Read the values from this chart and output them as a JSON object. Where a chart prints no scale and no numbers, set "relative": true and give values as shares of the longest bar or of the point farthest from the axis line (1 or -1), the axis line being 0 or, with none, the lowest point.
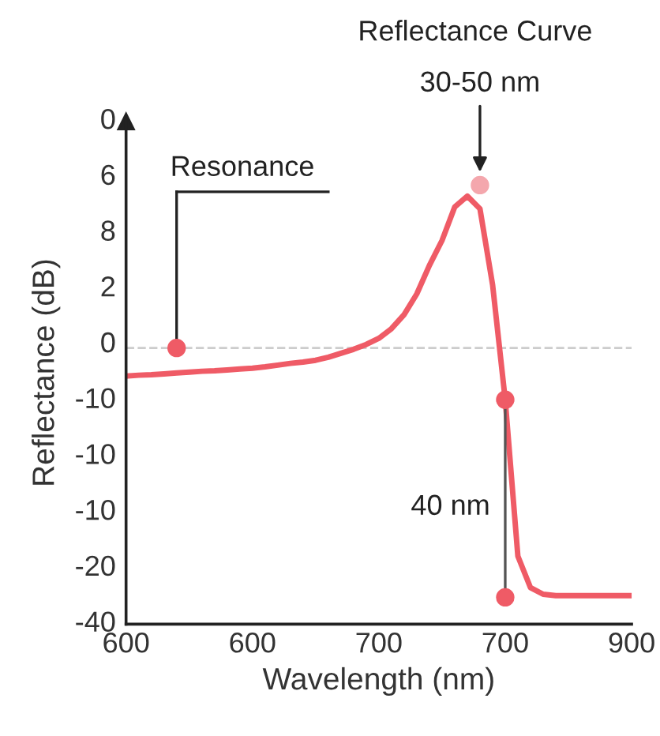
{
  "chart_data": {
    "type": "line",
    "title": "Reflectance Curve",
    "xlabel": "Wavelength (nm)",
    "ylabel": "Reflectance (dB)",
    "relative": true,
    "categories": [
      "600",
      null,
      null,
      null,
      null,
      null,
      null,
      null,
      null,
      null,
      "600",
      null,
      null,
      null,
      null,
      null,
      null,
      null,
      null,
      null,
      "700",
      null,
      null,
      null,
      null,
      null,
      null,
      null,
      null,
      null,
      "700",
      null,
      null,
      null,
      null,
      null,
      null,
      null,
      null,
      null,
      "900"
    ],
    "grid": false,
    "legend": false,
    "line_style": "solid",
    "series": [
      {
        "color": "#ef5b66",
        "marker": "none",
        "values": [
          0.565,
          0.567,
          0.568,
          0.57,
          0.572,
          0.574,
          0.576,
          0.577,
          0.579,
          0.581,
          0.583,
          0.586,
          0.59,
          0.594,
          0.597,
          0.601,
          0.608,
          0.617,
          0.626,
          0.637,
          0.651,
          0.673,
          0.705,
          0.752,
          0.817,
          0.874,
          0.95,
          0.975,
          0.946,
          0.773,
          0.511,
          0.155,
          0.083,
          0.068,
          0.065,
          0.065,
          0.065,
          0.065,
          0.065,
          0.065,
          0.065
        ]
      },
      {
        "type": "scatter",
        "color": "#ef5b66",
        "marker": "circle",
        "values": [
          null,
          null,
          null,
          null,
          0.629,
          null,
          null,
          null,
          null,
          null,
          null,
          null,
          null,
          null,
          null,
          null,
          null,
          null,
          null,
          null,
          null,
          null,
          null,
          null,
          null,
          null,
          null,
          null,
          null,
          null,
          0.511,
          null,
          null,
          null,
          null,
          null,
          null,
          null,
          null,
          null,
          null
        ]
      },
      {
        "type": "scatter",
        "color": "#ef5b66",
        "marker": "circle",
        "values": [
          null,
          null,
          null,
          null,
          null,
          null,
          null,
          null,
          null,
          null,
          null,
          null,
          null,
          null,
          null,
          null,
          null,
          null,
          null,
          null,
          null,
          null,
          null,
          null,
          null,
          null,
          null,
          null,
          null,
          null,
          0.061,
          null,
          null,
          null,
          null,
          null,
          null,
          null,
          null,
          null,
          null
        ]
      },
      {
        "type": "scatter",
        "color": "#f4a7ad",
        "marker": "circle",
        "values": [
          null,
          null,
          null,
          null,
          null,
          null,
          null,
          null,
          null,
          null,
          null,
          null,
          null,
          null,
          null,
          null,
          null,
          null,
          null,
          null,
          null,
          null,
          null,
          null,
          null,
          null,
          null,
          null,
          1.0,
          null,
          null,
          null,
          null,
          null,
          null,
          null,
          null,
          null,
          null,
          null,
          null
        ]
      }
    ],
    "ref_lines": [
      {
        "axis": "y",
        "value": 0.629,
        "color": "#cccccc",
        "line_style": "dashed"
      }
    ],
    "annotations": [
      "Resonance",
      "30-50 nm",
      "40 nm",
      "0",
      "6",
      "8",
      "2",
      "0",
      "-10",
      "-10",
      "-10",
      "-20",
      "-40"
    ]
  }
}
